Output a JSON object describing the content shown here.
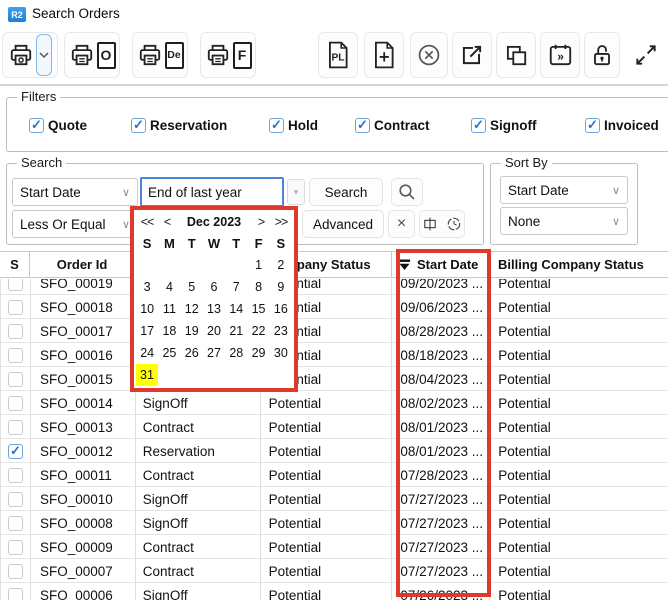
{
  "window": {
    "logo_text": "R2",
    "title": "Search Orders"
  },
  "toolbar": {
    "print_default_glyph": "o",
    "print_o_glyph": "O",
    "print_de_glyph": "De",
    "print_f_glyph": "F",
    "pl_glyph": "PL",
    "schedule_glyph": "»"
  },
  "filters": {
    "title": "Filters",
    "items": [
      {
        "label": "Quote",
        "checked": true
      },
      {
        "label": "Reservation",
        "checked": true
      },
      {
        "label": "Hold",
        "checked": true
      },
      {
        "label": "Contract",
        "checked": true
      },
      {
        "label": "Signoff",
        "checked": true
      },
      {
        "label": "Invoiced",
        "checked": true
      }
    ]
  },
  "search": {
    "title": "Search",
    "field": "Start Date",
    "value": "End of last year",
    "search_button": "Search",
    "operator": "Less Or Equal",
    "advanced_button": "Advanced",
    "clear_label": "×"
  },
  "sort_by": {
    "title": "Sort By",
    "primary": "Start Date",
    "secondary": "None"
  },
  "calendar": {
    "prev_year": "<<",
    "prev_month": "<",
    "month_title": "Dec 2023",
    "next_month": ">",
    "next_year": ">>",
    "day_headers": [
      "S",
      "M",
      "T",
      "W",
      "T",
      "F",
      "S"
    ],
    "weeks": [
      [
        "",
        "",
        "",
        "",
        "",
        "1",
        "2"
      ],
      [
        "3",
        "4",
        "5",
        "6",
        "7",
        "8",
        "9"
      ],
      [
        "10",
        "11",
        "12",
        "13",
        "14",
        "15",
        "16"
      ],
      [
        "17",
        "18",
        "19",
        "20",
        "21",
        "22",
        "23"
      ],
      [
        "24",
        "25",
        "26",
        "27",
        "28",
        "29",
        "30"
      ],
      [
        "31",
        "",
        "",
        "",
        "",
        "",
        ""
      ]
    ],
    "highlighted_day": "31",
    "highlight_color": "#ffff00"
  },
  "table": {
    "headers": {
      "select": "S",
      "order_id": "Order Id",
      "order_status": "",
      "company_status": "Company Status",
      "start_date": "Start Date",
      "billing_company_status": "Billing Company Status"
    },
    "rows": [
      {
        "selected": false,
        "order_id": "SFO_00019",
        "order_status": "",
        "company_status": "Potential",
        "start_date": "09/20/2023 ...",
        "billing": "Potential"
      },
      {
        "selected": false,
        "order_id": "SFO_00018",
        "order_status": "",
        "company_status": "Potential",
        "start_date": "09/06/2023 ...",
        "billing": "Potential"
      },
      {
        "selected": false,
        "order_id": "SFO_00017",
        "order_status": "",
        "company_status": "Potential",
        "start_date": "08/28/2023 ...",
        "billing": "Potential"
      },
      {
        "selected": false,
        "order_id": "SFO_00016",
        "order_status": "",
        "company_status": "Potential",
        "start_date": "08/18/2023 ...",
        "billing": "Potential"
      },
      {
        "selected": false,
        "order_id": "SFO_00015",
        "order_status": "",
        "company_status": "Potential",
        "start_date": "08/04/2023 ...",
        "billing": "Potential"
      },
      {
        "selected": false,
        "order_id": "SFO_00014",
        "order_status": "SignOff",
        "company_status": "Potential",
        "start_date": "08/02/2023 ...",
        "billing": "Potential"
      },
      {
        "selected": false,
        "order_id": "SFO_00013",
        "order_status": "Contract",
        "company_status": "Potential",
        "start_date": "08/01/2023 ...",
        "billing": "Potential"
      },
      {
        "selected": true,
        "order_id": "SFO_00012",
        "order_status": "Reservation",
        "company_status": "Potential",
        "start_date": "08/01/2023 ...",
        "billing": "Potential"
      },
      {
        "selected": false,
        "order_id": "SFO_00011",
        "order_status": "Contract",
        "company_status": "Potential",
        "start_date": "07/28/2023 ...",
        "billing": "Potential"
      },
      {
        "selected": false,
        "order_id": "SFO_00010",
        "order_status": "SignOff",
        "company_status": "Potential",
        "start_date": "07/27/2023 ...",
        "billing": "Potential"
      },
      {
        "selected": false,
        "order_id": "SFO_00008",
        "order_status": "SignOff",
        "company_status": "Potential",
        "start_date": "07/27/2023 ...",
        "billing": "Potential"
      },
      {
        "selected": false,
        "order_id": "SFO_00009",
        "order_status": "Contract",
        "company_status": "Potential",
        "start_date": "07/27/2023 ...",
        "billing": "Potential"
      },
      {
        "selected": false,
        "order_id": "SFO_00007",
        "order_status": "Contract",
        "company_status": "Potential",
        "start_date": "07/27/2023 ...",
        "billing": "Potential"
      },
      {
        "selected": false,
        "order_id": "SFO_00006",
        "order_status": "SignOff",
        "company_status": "Potential",
        "start_date": "07/26/2023 ...",
        "billing": "Potential"
      }
    ]
  },
  "annotations": {
    "color": "#dd3a2c"
  }
}
